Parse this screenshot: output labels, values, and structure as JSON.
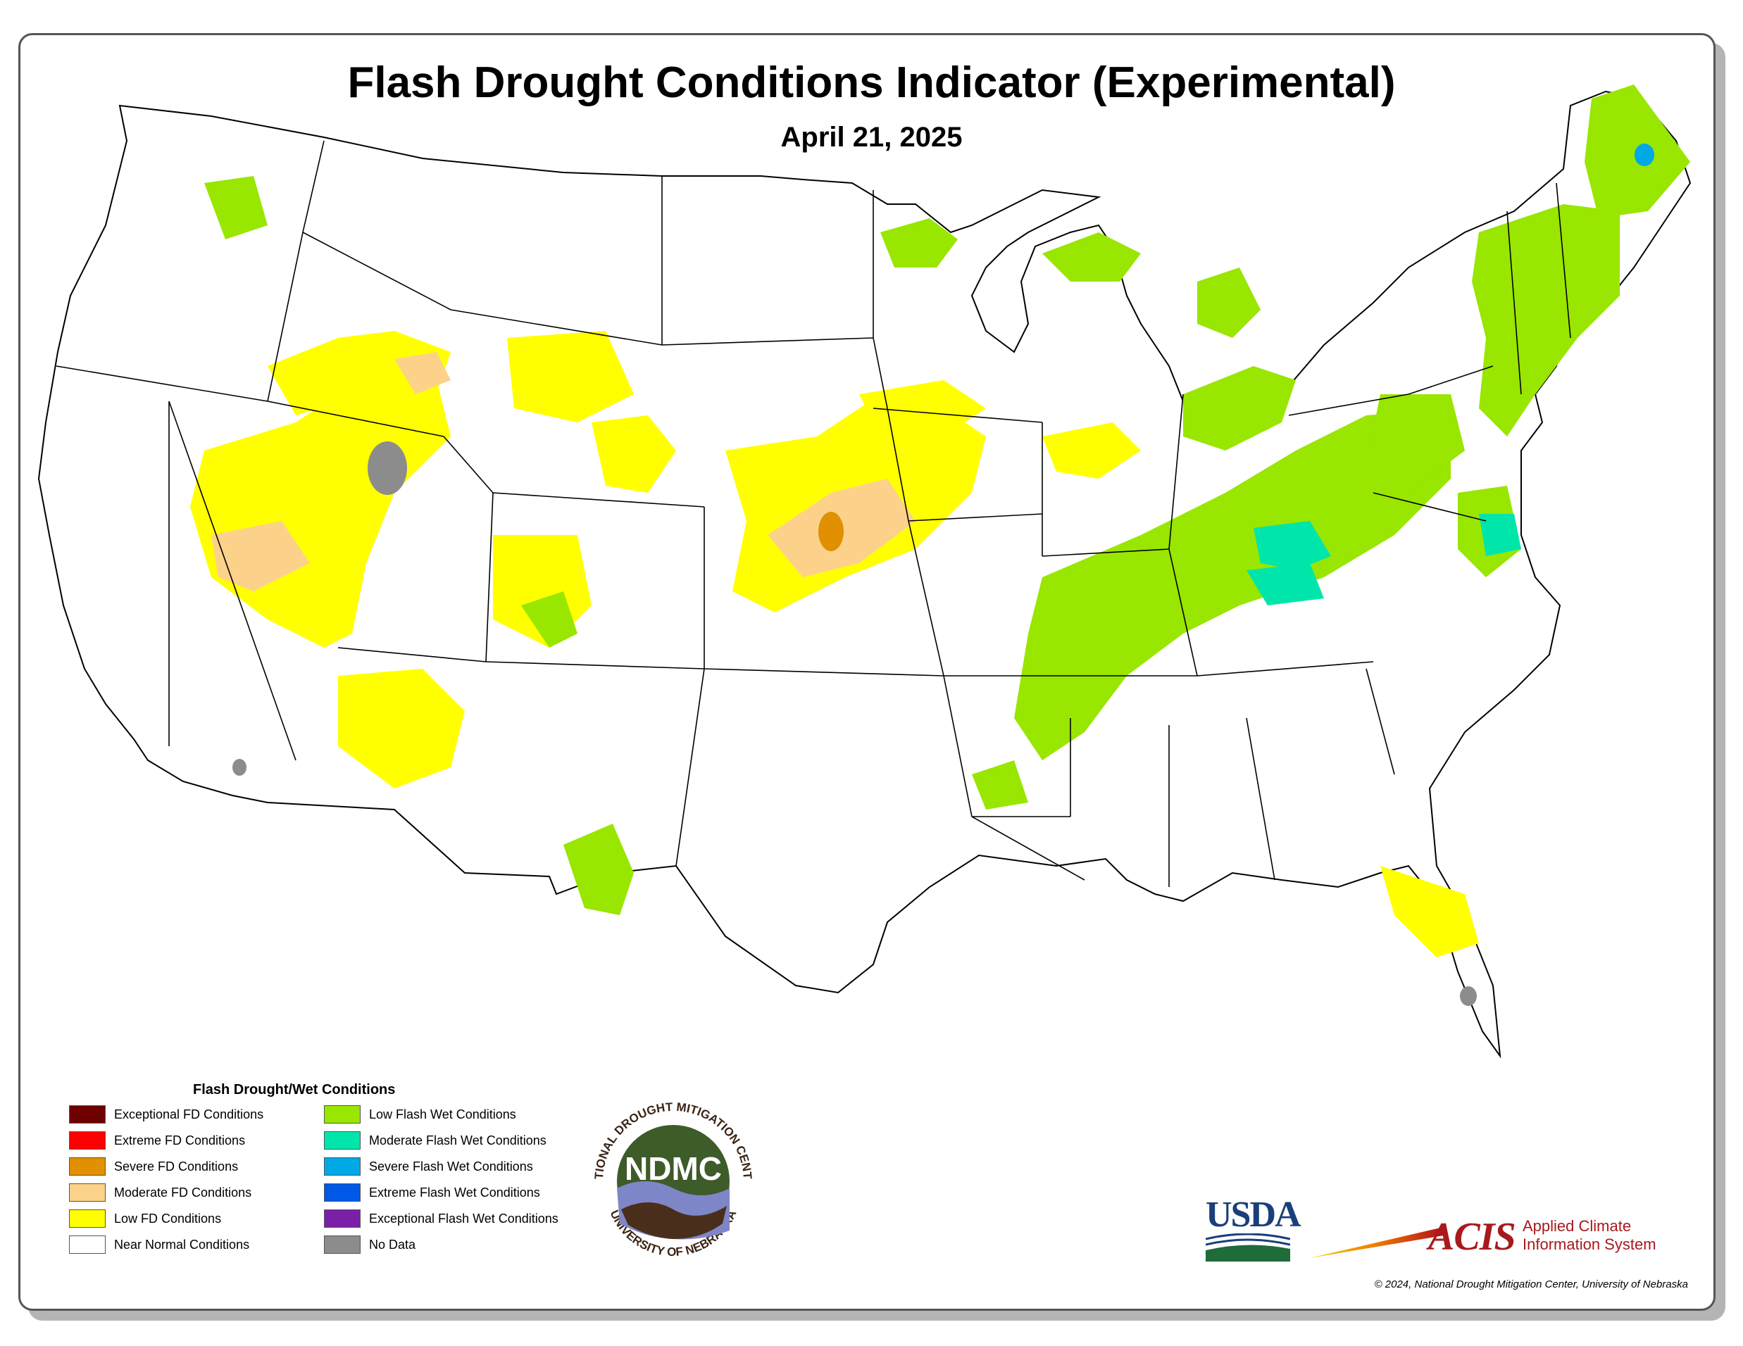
{
  "title": "Flash Drought Conditions Indicator (Experimental)",
  "date": "April 21, 2025",
  "legend": {
    "title": "Flash Drought/Wet Conditions",
    "left_column": [
      {
        "label": "Exceptional FD Conditions",
        "color": "#6e0000"
      },
      {
        "label": "Extreme FD Conditions",
        "color": "#ff0000"
      },
      {
        "label": "Severe FD Conditions",
        "color": "#e09000"
      },
      {
        "label": "Moderate FD Conditions",
        "color": "#fcd28a"
      },
      {
        "label": "Low FD Conditions",
        "color": "#ffff00"
      },
      {
        "label": "Near Normal Conditions",
        "color": "#ffffff"
      }
    ],
    "right_column": [
      {
        "label": "Low Flash Wet Conditions",
        "color": "#99e600"
      },
      {
        "label": "Moderate Flash Wet Conditions",
        "color": "#00e6aa"
      },
      {
        "label": "Severe Flash Wet Conditions",
        "color": "#00a8e6"
      },
      {
        "label": "Extreme Flash Wet Conditions",
        "color": "#0058e6"
      },
      {
        "label": "Exceptional Flash Wet Conditions",
        "color": "#7a1fa8"
      },
      {
        "label": "No Data",
        "color": "#8c8c8c"
      }
    ]
  },
  "logos": {
    "ndmc": {
      "abbr": "NDMC",
      "ring_top": "NATIONAL DROUGHT MITIGATION CENTER",
      "ring_bottom": "UNIVERSITY OF NEBRASKA"
    },
    "usda": {
      "text": "USDA"
    },
    "acis": {
      "abbr": "ACIS",
      "line1": "Applied Climate",
      "line2": "Information System"
    }
  },
  "copyright": "© 2024, National Drought Mitigation Center, University of Nebraska",
  "map": {
    "region": "Contiguous United States",
    "colors": {
      "state_border": "#000000",
      "coast": "#0058e6",
      "low_fd": "#ffff00",
      "moderate_fd": "#fcd28a",
      "severe_fd": "#e09000",
      "low_wet": "#99e600",
      "moderate_wet": "#00e6aa",
      "severe_wet": "#00a8e6",
      "no_data": "#8c8c8c"
    }
  }
}
